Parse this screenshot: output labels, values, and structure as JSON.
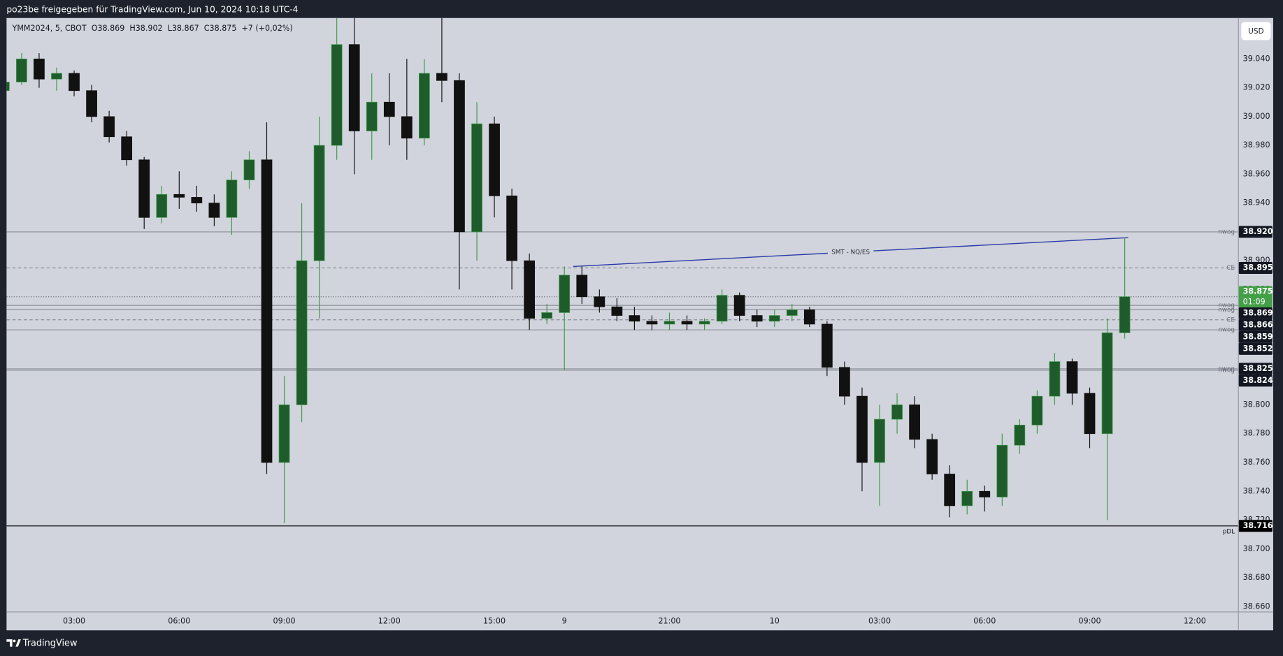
{
  "chart_data": {
    "type": "candlestick",
    "header": "po23be freigegeben für TradingView.com, Jun 10, 2024 10:18 UTC-4",
    "symbol_info": "YMM2024, 5, CBOT",
    "ohlc_info": "O38.869  H38.902  L38.867  C38.875  +7 (+0,02%)",
    "currency": "USD",
    "brand": "TradingView",
    "up_color": "#1f5c2b",
    "up_wick_color": "#3f9a4b",
    "down_color": "#111111",
    "grid": false,
    "open": [
      39.018,
      39.024,
      39.04,
      39.026,
      39.03,
      39.018,
      39.0,
      38.986,
      38.97,
      38.93,
      38.946,
      38.944,
      38.94,
      38.93,
      38.956,
      38.97,
      38.76,
      38.8,
      38.9,
      38.98,
      39.05,
      38.99,
      39.01,
      39.0,
      38.985,
      39.03,
      39.025,
      38.92,
      38.995,
      38.945,
      38.9,
      38.86,
      38.864,
      38.89,
      38.875,
      38.868,
      38.862,
      38.858,
      38.856,
      38.858,
      38.856,
      38.858,
      38.876,
      38.862,
      38.858,
      38.862,
      38.866,
      38.856,
      38.826,
      38.806,
      38.76,
      38.79,
      38.8,
      38.776,
      38.752,
      38.73,
      38.74,
      38.736,
      38.772,
      38.786,
      38.806,
      38.83,
      38.808,
      38.78,
      38.85
    ],
    "high": [
      39.026,
      39.044,
      39.044,
      39.034,
      39.032,
      39.022,
      39.004,
      38.99,
      38.972,
      38.952,
      38.962,
      38.952,
      38.946,
      38.962,
      38.976,
      38.996,
      38.82,
      38.94,
      39.0,
      39.07,
      39.07,
      39.03,
      39.03,
      39.04,
      39.04,
      39.07,
      39.03,
      39.01,
      39.0,
      38.95,
      38.905,
      38.87,
      38.896,
      38.896,
      38.88,
      38.874,
      38.868,
      38.862,
      38.864,
      38.862,
      38.86,
      38.88,
      38.878,
      38.866,
      38.866,
      38.87,
      38.868,
      38.858,
      38.83,
      38.812,
      38.8,
      38.808,
      38.806,
      38.78,
      38.758,
      38.748,
      38.744,
      38.78,
      38.79,
      38.81,
      38.836,
      38.832,
      38.812,
      38.86,
      38.916
    ],
    "low": [
      39.016,
      39.022,
      39.02,
      39.018,
      39.014,
      38.996,
      38.982,
      38.966,
      38.922,
      38.926,
      38.936,
      38.934,
      38.924,
      38.918,
      38.95,
      38.752,
      38.718,
      38.788,
      38.86,
      38.97,
      38.96,
      38.97,
      38.98,
      38.97,
      38.98,
      39.01,
      38.88,
      38.9,
      38.93,
      38.88,
      38.852,
      38.856,
      38.824,
      38.87,
      38.864,
      38.858,
      38.852,
      38.852,
      38.852,
      38.852,
      38.852,
      38.856,
      38.858,
      38.854,
      38.854,
      38.858,
      38.854,
      38.82,
      38.8,
      38.74,
      38.73,
      38.78,
      38.77,
      38.748,
      38.722,
      38.724,
      38.726,
      38.73,
      38.766,
      38.78,
      38.8,
      38.8,
      38.77,
      38.72,
      38.846
    ],
    "close": [
      39.024,
      39.04,
      39.026,
      39.03,
      39.018,
      39.0,
      38.986,
      38.97,
      38.93,
      38.946,
      38.944,
      38.94,
      38.93,
      38.956,
      38.97,
      38.76,
      38.8,
      38.9,
      38.98,
      39.05,
      38.99,
      39.01,
      39.0,
      38.985,
      39.03,
      39.025,
      38.92,
      38.995,
      38.945,
      38.9,
      38.86,
      38.864,
      38.89,
      38.875,
      38.868,
      38.862,
      38.858,
      38.856,
      38.858,
      38.856,
      38.858,
      38.876,
      38.862,
      38.858,
      38.862,
      38.866,
      38.856,
      38.826,
      38.806,
      38.76,
      38.79,
      38.8,
      38.776,
      38.752,
      38.73,
      38.74,
      38.736,
      38.772,
      38.786,
      38.806,
      38.83,
      38.808,
      38.78,
      38.85,
      38.875
    ],
    "xlim": [
      0.14,
      70.47
    ],
    "xticks": [
      {
        "value": 4,
        "label": "03:00"
      },
      {
        "value": 10,
        "label": "06:00"
      },
      {
        "value": 16,
        "label": "09:00"
      },
      {
        "value": 22,
        "label": "12:00"
      },
      {
        "value": 28,
        "label": "15:00"
      },
      {
        "value": 32,
        "label": "9"
      },
      {
        "value": 38,
        "label": "21:00"
      },
      {
        "value": 44,
        "label": "10"
      },
      {
        "value": 50,
        "label": "03:00"
      },
      {
        "value": 56,
        "label": "06:00"
      },
      {
        "value": 62,
        "label": "09:00"
      },
      {
        "value": 68,
        "label": "12:00"
      }
    ],
    "ylim": [
      38.6566,
      39.0684
    ],
    "yticks": [
      {
        "value": 38.66,
        "label": "38.660"
      },
      {
        "value": 38.68,
        "label": "38.680"
      },
      {
        "value": 38.7,
        "label": "38.700"
      },
      {
        "value": 38.72,
        "label": "38.720"
      },
      {
        "value": 38.74,
        "label": "38.740"
      },
      {
        "value": 38.76,
        "label": "38.760"
      },
      {
        "value": 38.78,
        "label": "38.780"
      },
      {
        "value": 38.8,
        "label": "38.800"
      },
      {
        "value": 38.82,
        "label": "38.820"
      },
      {
        "value": 38.84,
        "label": "38.840"
      },
      {
        "value": 38.86,
        "label": "38.860"
      },
      {
        "value": 38.88,
        "label": "38.880"
      },
      {
        "value": 38.9,
        "label": "38.900"
      },
      {
        "value": 38.92,
        "label": "38.920"
      },
      {
        "value": 38.94,
        "label": "38.940"
      },
      {
        "value": 38.96,
        "label": "38.960"
      },
      {
        "value": 38.98,
        "label": "38.980"
      },
      {
        "value": 39.0,
        "label": "39.000"
      },
      {
        "value": 39.02,
        "label": "39.020"
      },
      {
        "value": 39.04,
        "label": "39.040"
      }
    ],
    "levels": [
      {
        "name": "nwog",
        "price": {
          "value": 38.92,
          "label": "38.920"
        },
        "style": "solid",
        "color": "#8a8e99"
      },
      {
        "name": "CE",
        "price": {
          "value": 38.895,
          "label": "38.895"
        },
        "style": "dashed",
        "color": "#8a8e99"
      },
      {
        "name": "nwog",
        "price": {
          "value": 38.869,
          "label": "38.869"
        },
        "style": "solid",
        "color": "#8a8e99"
      },
      {
        "name": "nwog",
        "price": {
          "value": 38.866,
          "label": "38.866"
        },
        "style": "solid",
        "color": "#8a8e99"
      },
      {
        "name": "CE",
        "price": {
          "value": 38.859,
          "label": "38.859"
        },
        "style": "dashed",
        "color": "#8a8e99"
      },
      {
        "name": "nwog",
        "price": {
          "value": 38.852,
          "label": "38.852"
        },
        "style": "solid",
        "color": "#8a8e99"
      },
      {
        "name": "nwog",
        "price": {
          "value": 38.825,
          "label": "38.825"
        },
        "style": "solid",
        "color": "#8a8e99"
      },
      {
        "name": "nwog",
        "price": {
          "value": 38.824,
          "label": "38.824"
        },
        "style": "solid",
        "color": "#8a8e99"
      },
      {
        "name": "pDL",
        "price": {
          "value": 38.716,
          "label": "38.716"
        },
        "style": "solid",
        "color": "#000000"
      }
    ],
    "current_price": {
      "value": 38.875,
      "label": "38.875",
      "countdown": "01:09",
      "color": "#43a047"
    },
    "annotation": {
      "text": "SMT - NQ/ES",
      "x": [
        32.5,
        64.2
      ],
      "y": [
        38.896,
        38.916
      ],
      "color": "#2b3ba8"
    }
  }
}
